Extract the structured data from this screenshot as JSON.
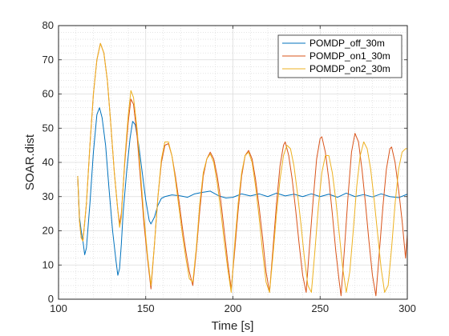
{
  "chart_data": {
    "type": "line",
    "title": "",
    "xlabel": "Time [s]",
    "ylabel": "SOAR.dist",
    "xlim": [
      100,
      300
    ],
    "ylim": [
      0,
      80
    ],
    "xticks": [
      100,
      150,
      200,
      250,
      300
    ],
    "yticks": [
      0,
      10,
      20,
      30,
      40,
      50,
      60,
      70,
      80
    ],
    "grid": true,
    "minor_grid": true,
    "legend_position": "top-right",
    "series": [
      {
        "name": "POMDP_off_30m",
        "color": "#0072BD",
        "points": [
          [
            111,
            36
          ],
          [
            112,
            24
          ],
          [
            113,
            20
          ],
          [
            114,
            17
          ],
          [
            115,
            13
          ],
          [
            116,
            15
          ],
          [
            118,
            28
          ],
          [
            120,
            43
          ],
          [
            122,
            54
          ],
          [
            123.5,
            56
          ],
          [
            125,
            53
          ],
          [
            127,
            45
          ],
          [
            129,
            32
          ],
          [
            131,
            20
          ],
          [
            133,
            11
          ],
          [
            134,
            7
          ],
          [
            135,
            9
          ],
          [
            136,
            16
          ],
          [
            137,
            25
          ],
          [
            139,
            37
          ],
          [
            141,
            47
          ],
          [
            142.5,
            52
          ],
          [
            144,
            51
          ],
          [
            146,
            45
          ],
          [
            148,
            37
          ],
          [
            150,
            29
          ],
          [
            152,
            23
          ],
          [
            153,
            22
          ],
          [
            155,
            24
          ],
          [
            157,
            27.5
          ],
          [
            159,
            29.5
          ],
          [
            161,
            30
          ],
          [
            165,
            30.5
          ],
          [
            170,
            30.2
          ],
          [
            174,
            29.8
          ],
          [
            178,
            30.8
          ],
          [
            182,
            31.2
          ],
          [
            187,
            31.6
          ],
          [
            192,
            30.2
          ],
          [
            196,
            29.6
          ],
          [
            200,
            29.8
          ],
          [
            205,
            30.8
          ],
          [
            210,
            30.2
          ],
          [
            215,
            30.8
          ],
          [
            220,
            30.0
          ],
          [
            225,
            31.0
          ],
          [
            230,
            30.2
          ],
          [
            235,
            30.7
          ],
          [
            240,
            30.0
          ],
          [
            245,
            30.8
          ],
          [
            250,
            30.0
          ],
          [
            255,
            30.7
          ],
          [
            260,
            29.8
          ],
          [
            265,
            31.0
          ],
          [
            270,
            30.0
          ],
          [
            275,
            30.6
          ],
          [
            280,
            29.9
          ],
          [
            285,
            30.8
          ],
          [
            290,
            30.0
          ],
          [
            295,
            29.7
          ],
          [
            300,
            30.7
          ]
        ]
      },
      {
        "name": "POMDP_on1_30m",
        "color": "#D95319",
        "points": [
          [
            111,
            36
          ],
          [
            112,
            23
          ],
          [
            113,
            18
          ],
          [
            114,
            17
          ],
          [
            116,
            28
          ],
          [
            118,
            45
          ],
          [
            120,
            60
          ],
          [
            122,
            70
          ],
          [
            124,
            74.8
          ],
          [
            126,
            72
          ],
          [
            128,
            64
          ],
          [
            130,
            51
          ],
          [
            132,
            37
          ],
          [
            134,
            26
          ],
          [
            135,
            22
          ],
          [
            136,
            25
          ],
          [
            138,
            40
          ],
          [
            140,
            52
          ],
          [
            141.5,
            58.5
          ],
          [
            143,
            57
          ],
          [
            145,
            48
          ],
          [
            147,
            35
          ],
          [
            149,
            22
          ],
          [
            151,
            12
          ],
          [
            153,
            3
          ],
          [
            155,
            16
          ],
          [
            157,
            30
          ],
          [
            159,
            40
          ],
          [
            161,
            45
          ],
          [
            163,
            45.5
          ],
          [
            165,
            42
          ],
          [
            167,
            36
          ],
          [
            169,
            29
          ],
          [
            171,
            21
          ],
          [
            173,
            14
          ],
          [
            175,
            8
          ],
          [
            177,
            4
          ],
          [
            179,
            14
          ],
          [
            181,
            26
          ],
          [
            183,
            36
          ],
          [
            185,
            41
          ],
          [
            187,
            43
          ],
          [
            189,
            41
          ],
          [
            191,
            36
          ],
          [
            193,
            29
          ],
          [
            195,
            20
          ],
          [
            197,
            11
          ],
          [
            199,
            3
          ],
          [
            201,
            14
          ],
          [
            203,
            26
          ],
          [
            205,
            36
          ],
          [
            207,
            42
          ],
          [
            209,
            43.5
          ],
          [
            211,
            41
          ],
          [
            213,
            35
          ],
          [
            215,
            27
          ],
          [
            217,
            18
          ],
          [
            219,
            8
          ],
          [
            221,
            2
          ],
          [
            223,
            15
          ],
          [
            225,
            28
          ],
          [
            227,
            39
          ],
          [
            229,
            45
          ],
          [
            230,
            46
          ],
          [
            232,
            42
          ],
          [
            234,
            35
          ],
          [
            236,
            26
          ],
          [
            238,
            16
          ],
          [
            240,
            7
          ],
          [
            242,
            2
          ],
          [
            244,
            16
          ],
          [
            246,
            29
          ],
          [
            248,
            41
          ],
          [
            250,
            47
          ],
          [
            251,
            47.5
          ],
          [
            253,
            43
          ],
          [
            255,
            35
          ],
          [
            257,
            25
          ],
          [
            259,
            14
          ],
          [
            261,
            5
          ],
          [
            262,
            1
          ],
          [
            264,
            15
          ],
          [
            266,
            30
          ],
          [
            268,
            43
          ],
          [
            270,
            48.5
          ],
          [
            272,
            46
          ],
          [
            274,
            38
          ],
          [
            276,
            28
          ],
          [
            278,
            17
          ],
          [
            280,
            7
          ],
          [
            282,
            1
          ],
          [
            284,
            14
          ],
          [
            286,
            27
          ],
          [
            288,
            38
          ],
          [
            290,
            44
          ],
          [
            291,
            44.5
          ],
          [
            293,
            40
          ],
          [
            295,
            32
          ],
          [
            297,
            23
          ],
          [
            299,
            12
          ],
          [
            300,
            19
          ]
        ]
      },
      {
        "name": "POMDP_on2_30m",
        "color": "#EDB120",
        "points": [
          [
            111,
            36
          ],
          [
            112,
            23
          ],
          [
            113,
            18
          ],
          [
            114,
            17
          ],
          [
            116,
            28
          ],
          [
            118,
            45
          ],
          [
            120,
            60
          ],
          [
            122,
            70
          ],
          [
            124,
            74.8
          ],
          [
            126,
            72
          ],
          [
            128,
            64
          ],
          [
            130,
            51
          ],
          [
            132,
            37
          ],
          [
            134,
            26
          ],
          [
            135,
            21
          ],
          [
            136,
            24
          ],
          [
            138,
            41
          ],
          [
            140,
            54
          ],
          [
            141.5,
            61
          ],
          [
            143,
            59
          ],
          [
            145,
            50
          ],
          [
            147,
            37
          ],
          [
            149,
            24
          ],
          [
            151,
            13
          ],
          [
            153,
            4
          ],
          [
            155,
            16
          ],
          [
            157,
            30
          ],
          [
            159,
            41
          ],
          [
            161,
            46
          ],
          [
            163,
            46
          ],
          [
            165,
            42
          ],
          [
            167,
            35
          ],
          [
            169,
            27
          ],
          [
            171,
            19
          ],
          [
            173,
            12
          ],
          [
            175,
            6
          ],
          [
            177,
            5
          ],
          [
            179,
            15
          ],
          [
            181,
            28
          ],
          [
            183,
            37
          ],
          [
            185,
            41
          ],
          [
            187,
            42.5
          ],
          [
            189,
            40
          ],
          [
            191,
            34
          ],
          [
            193,
            26
          ],
          [
            195,
            17
          ],
          [
            197,
            9
          ],
          [
            199,
            2
          ],
          [
            201,
            16
          ],
          [
            203,
            28
          ],
          [
            205,
            37
          ],
          [
            207,
            42
          ],
          [
            209,
            43
          ],
          [
            211,
            40
          ],
          [
            213,
            33
          ],
          [
            215,
            24
          ],
          [
            217,
            14
          ],
          [
            219,
            5
          ],
          [
            221,
            2
          ],
          [
            223,
            13
          ],
          [
            225,
            25
          ],
          [
            227,
            35
          ],
          [
            229,
            42
          ],
          [
            231,
            45
          ],
          [
            233,
            44
          ],
          [
            235,
            39
          ],
          [
            237,
            31
          ],
          [
            239,
            22
          ],
          [
            241,
            12
          ],
          [
            243,
            4
          ],
          [
            245,
            2
          ],
          [
            247,
            14
          ],
          [
            249,
            27
          ],
          [
            251,
            37
          ],
          [
            253,
            42
          ],
          [
            255,
            42
          ],
          [
            257,
            37
          ],
          [
            259,
            29
          ],
          [
            261,
            19
          ],
          [
            263,
            9
          ],
          [
            265,
            2
          ],
          [
            267,
            8
          ],
          [
            269,
            20
          ],
          [
            271,
            33
          ],
          [
            273,
            42
          ],
          [
            275,
            46
          ],
          [
            277,
            44
          ],
          [
            279,
            38
          ],
          [
            281,
            29
          ],
          [
            283,
            19
          ],
          [
            285,
            9
          ],
          [
            287,
            2
          ],
          [
            289,
            4
          ],
          [
            291,
            15
          ],
          [
            293,
            28
          ],
          [
            295,
            38
          ],
          [
            297,
            43
          ],
          [
            299,
            44
          ],
          [
            300,
            44
          ]
        ]
      }
    ]
  }
}
